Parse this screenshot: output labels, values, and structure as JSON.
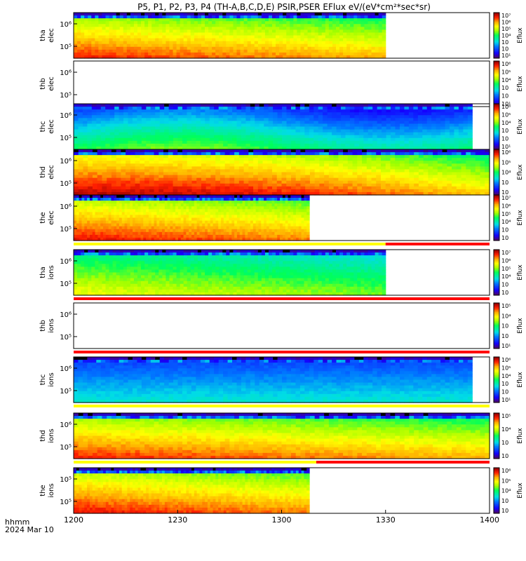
{
  "chart_data": {
    "type": "heatmap",
    "title": "P5, P1, P2, P3, P4 (TH-A,B,C,D,E) PSIR,PSER EFlux eV/(eV*cm²*sec*sr)",
    "x_unit_label": "hhmm",
    "date_label": "2024 Mar 10",
    "x_range": [
      "1200",
      "1400"
    ],
    "x_ticks": [
      "1200",
      "1230",
      "1300",
      "1330",
      "1400"
    ],
    "colorbar_label": "Eflux",
    "y_scale": "log",
    "panels": [
      {
        "probe": "tha",
        "species": "elec",
        "y_ticks": [
          "10⁶",
          "10⁵"
        ],
        "cbar_ticks": [
          "10⁷",
          "10⁶",
          "10⁵",
          "10⁴",
          "10⁳",
          "10⁲",
          "10¹"
        ],
        "data_end": "1330",
        "profile": "hot_dense",
        "bar": null
      },
      {
        "probe": "thb",
        "species": "elec",
        "y_ticks": [
          "10⁶",
          "10⁵"
        ],
        "cbar_ticks": [
          "10⁶",
          "10⁵",
          "10⁴",
          "10⁳",
          "10⁲",
          "10¹"
        ],
        "data_end": null,
        "profile": "none",
        "bar": null
      },
      {
        "probe": "thc",
        "species": "elec",
        "y_ticks": [
          "10⁶",
          "10⁵"
        ],
        "cbar_ticks": [
          "10⁶",
          "10⁵",
          "10⁴",
          "10⁳",
          "10⁲",
          "10¹"
        ],
        "data_end": "1355",
        "profile": "cold",
        "bar": null
      },
      {
        "probe": "thd",
        "species": "elec",
        "y_ticks": [
          "10⁶",
          "10⁵"
        ],
        "cbar_ticks": [
          "10⁶",
          "10⁵",
          "10⁴",
          "10⁳",
          "10⁲"
        ],
        "data_end": "1400",
        "profile": "very_hot",
        "bar": null
      },
      {
        "probe": "the",
        "species": "elec",
        "y_ticks": [
          "10⁶",
          "10⁵"
        ],
        "cbar_ticks": [
          "10⁷",
          "10⁶",
          "10⁵",
          "10⁴",
          "10⁳",
          "10⁲"
        ],
        "data_end": "1308",
        "profile": "hot",
        "bar": [
          {
            "from": "1200",
            "to": "1330",
            "color": "#ffff00"
          },
          {
            "from": "1330",
            "to": "1400",
            "color": "#ff0000"
          }
        ]
      },
      {
        "probe": "tha",
        "species": "ions",
        "y_ticks": [
          "10⁶",
          "10⁵"
        ],
        "cbar_ticks": [
          "10⁷",
          "10⁶",
          "10⁵",
          "10⁴",
          "10⁳",
          "10⁲"
        ],
        "data_end": "1330",
        "profile": "warm",
        "bar": [
          {
            "from": "1200",
            "to": "1400",
            "color": "#ff0000"
          }
        ]
      },
      {
        "probe": "thb",
        "species": "ions",
        "y_ticks": [
          "10⁶",
          "10⁵"
        ],
        "cbar_ticks": [
          "10⁵",
          "10⁴",
          "10⁳",
          "10⁲",
          "10¹"
        ],
        "data_end": null,
        "profile": "none",
        "bar": [
          {
            "from": "1200",
            "to": "1400",
            "color": "#ff0000"
          }
        ]
      },
      {
        "probe": "thc",
        "species": "ions",
        "y_ticks": [
          "10⁶",
          "10⁵"
        ],
        "cbar_ticks": [
          "10⁶",
          "10⁵",
          "10⁴",
          "10⁳",
          "10⁲",
          "10¹"
        ],
        "data_end": "1355",
        "profile": "cold_ion",
        "bar": [
          {
            "from": "1200",
            "to": "1400",
            "color": "#ffff00"
          }
        ]
      },
      {
        "probe": "thd",
        "species": "ions",
        "y_ticks": [
          "10⁶",
          "10⁵"
        ],
        "cbar_ticks": [
          "10⁵",
          "10⁴",
          "10⁳",
          "10⁲"
        ],
        "data_end": "1400",
        "profile": "hot_dense",
        "bar": [
          {
            "from": "1200",
            "to": "1310",
            "color": "#ffff00"
          },
          {
            "from": "1310",
            "to": "1400",
            "color": "#ff0000"
          }
        ]
      },
      {
        "probe": "the",
        "species": "ions",
        "y_ticks": [
          "10⁵",
          "10⁵"
        ],
        "cbar_ticks": [
          "10⁶",
          "10⁵",
          "10⁴",
          "10⁳",
          "10⁲"
        ],
        "data_end": "1308",
        "profile": "hot",
        "bar": null
      }
    ]
  }
}
